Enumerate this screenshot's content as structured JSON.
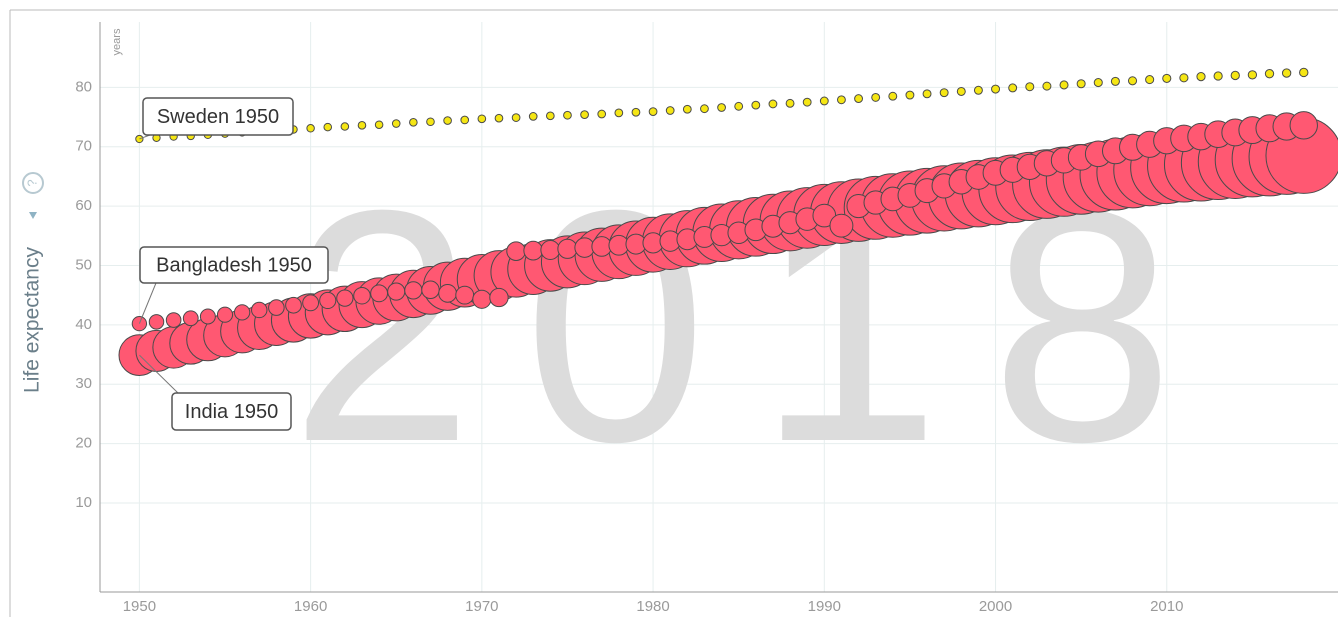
{
  "chart_data": {
    "type": "bubble",
    "year_label": "2018",
    "ylabel": "Life expectancy",
    "y_unit": "years",
    "x": [
      1950,
      1951,
      1952,
      1953,
      1954,
      1955,
      1956,
      1957,
      1958,
      1959,
      1960,
      1961,
      1962,
      1963,
      1964,
      1965,
      1966,
      1967,
      1968,
      1969,
      1970,
      1971,
      1972,
      1973,
      1974,
      1975,
      1976,
      1977,
      1978,
      1979,
      1980,
      1981,
      1982,
      1983,
      1984,
      1985,
      1986,
      1987,
      1988,
      1989,
      1990,
      1991,
      1992,
      1993,
      1994,
      1995,
      1996,
      1997,
      1998,
      1999,
      2000,
      2001,
      2002,
      2003,
      2004,
      2005,
      2006,
      2007,
      2008,
      2009,
      2010,
      2011,
      2012,
      2013,
      2014,
      2015,
      2016,
      2017,
      2018
    ],
    "xlim": [
      1947.7,
      2020
    ],
    "ylim": [
      -5,
      91
    ],
    "xticks": [
      1950,
      1960,
      1970,
      1980,
      1990,
      2000,
      2010
    ],
    "yticks": [
      10,
      20,
      30,
      40,
      50,
      60,
      70,
      80
    ],
    "grid": true,
    "series": [
      {
        "label": "India 1950",
        "color": "#ff5872",
        "values": [
          34.9,
          35.6,
          36.2,
          36.9,
          37.5,
          38.2,
          38.9,
          39.5,
          40.2,
          40.8,
          41.5,
          42.1,
          42.7,
          43.4,
          44.0,
          44.6,
          45.2,
          45.8,
          46.5,
          47.1,
          47.7,
          48.3,
          48.9,
          49.4,
          50.0,
          50.6,
          51.2,
          51.8,
          52.3,
          52.9,
          53.5,
          54.0,
          54.5,
          55.0,
          55.5,
          56.0,
          56.5,
          57.0,
          57.5,
          58.0,
          58.5,
          58.9,
          59.3,
          59.7,
          60.1,
          60.5,
          60.9,
          61.3,
          61.7,
          62.1,
          62.5,
          62.9,
          63.3,
          63.7,
          64.1,
          64.5,
          64.9,
          65.3,
          65.7,
          66.1,
          66.5,
          66.8,
          67.0,
          67.3,
          67.5,
          67.8,
          68.0,
          68.3,
          68.5
        ],
        "sizes": [
          376,
          383,
          391,
          398,
          406,
          413,
          420,
          428,
          435,
          443,
          450,
          461,
          471,
          482,
          492,
          503,
          513,
          524,
          534,
          545,
          555,
          569,
          584,
          598,
          613,
          627,
          641,
          656,
          670,
          685,
          699,
          716,
          734,
          751,
          769,
          786,
          803,
          821,
          838,
          856,
          873,
          891,
          910,
          928,
          947,
          965,
          983,
          1002,
          1020,
          1039,
          1057,
          1075,
          1092,
          1110,
          1128,
          1146,
          1163,
          1181,
          1199,
          1216,
          1234,
          1249,
          1264,
          1279,
          1294,
          1308,
          1323,
          1338,
          1353
        ]
      },
      {
        "label": "Bangladesh 1950",
        "color": "#ff5872",
        "values": [
          40.2,
          40.5,
          40.8,
          41.1,
          41.4,
          41.7,
          42.1,
          42.5,
          42.9,
          43.3,
          43.7,
          44.1,
          44.5,
          44.9,
          45.3,
          45.6,
          45.8,
          45.9,
          45.3,
          45.0,
          44.3,
          44.6,
          52.4,
          52.5,
          52.6,
          52.8,
          53.0,
          53.2,
          53.4,
          53.6,
          53.8,
          54.1,
          54.4,
          54.8,
          55.1,
          55.5,
          56.0,
          56.6,
          57.2,
          57.8,
          58.4,
          56.7,
          60.0,
          60.6,
          61.2,
          61.8,
          62.6,
          63.4,
          64.1,
          64.9,
          65.6,
          66.1,
          66.6,
          67.2,
          67.7,
          68.2,
          68.8,
          69.3,
          69.9,
          70.4,
          71.0,
          71.4,
          71.7,
          72.1,
          72.4,
          72.8,
          73.1,
          73.4,
          73.6
        ],
        "sizes": [
          38,
          39,
          40,
          41,
          42,
          43,
          44,
          45,
          46,
          47,
          48,
          50,
          51,
          53,
          55,
          57,
          58,
          60,
          62,
          63,
          65,
          67,
          69,
          70,
          72,
          74,
          76,
          78,
          79,
          81,
          83,
          85,
          88,
          90,
          93,
          95,
          97,
          100,
          102,
          105,
          107,
          109,
          112,
          114,
          117,
          119,
          121,
          124,
          126,
          129,
          131,
          133,
          134,
          136,
          137,
          139,
          141,
          142,
          144,
          145,
          147,
          149,
          150,
          152,
          154,
          156,
          157,
          159,
          161
        ]
      },
      {
        "label": "Sweden 1950",
        "color": "#f5e614",
        "values": [
          71.3,
          71.5,
          71.7,
          71.8,
          72.0,
          72.2,
          72.4,
          72.6,
          72.7,
          72.9,
          73.1,
          73.3,
          73.4,
          73.6,
          73.7,
          73.9,
          74.1,
          74.2,
          74.4,
          74.5,
          74.7,
          74.8,
          74.9,
          75.1,
          75.2,
          75.3,
          75.4,
          75.5,
          75.7,
          75.8,
          75.9,
          76.1,
          76.3,
          76.4,
          76.6,
          76.8,
          77.0,
          77.2,
          77.3,
          77.5,
          77.7,
          77.9,
          78.1,
          78.3,
          78.5,
          78.7,
          78.9,
          79.1,
          79.3,
          79.5,
          79.7,
          79.9,
          80.1,
          80.2,
          80.4,
          80.6,
          80.8,
          81.0,
          81.1,
          81.3,
          81.5,
          81.6,
          81.8,
          81.9,
          82.0,
          82.1,
          82.3,
          82.4,
          82.5
        ],
        "sizes": [
          7.0,
          7.1,
          7.1,
          7.2,
          7.2,
          7.3,
          7.3,
          7.4,
          7.4,
          7.5,
          7.5,
          7.6,
          7.6,
          7.7,
          7.7,
          7.8,
          7.8,
          7.9,
          7.9,
          8.0,
          8.0,
          8.0,
          8.1,
          8.1,
          8.1,
          8.2,
          8.2,
          8.2,
          8.3,
          8.3,
          8.3,
          8.3,
          8.4,
          8.4,
          8.4,
          8.5,
          8.5,
          8.5,
          8.6,
          8.6,
          8.6,
          8.6,
          8.7,
          8.7,
          8.7,
          8.8,
          8.8,
          8.8,
          8.9,
          8.9,
          8.9,
          8.9,
          9.0,
          9.0,
          9.1,
          9.1,
          9.2,
          9.2,
          9.3,
          9.3,
          9.4,
          9.5,
          9.6,
          9.7,
          9.8,
          9.9,
          10.0,
          10.1,
          10.2
        ]
      }
    ]
  }
}
